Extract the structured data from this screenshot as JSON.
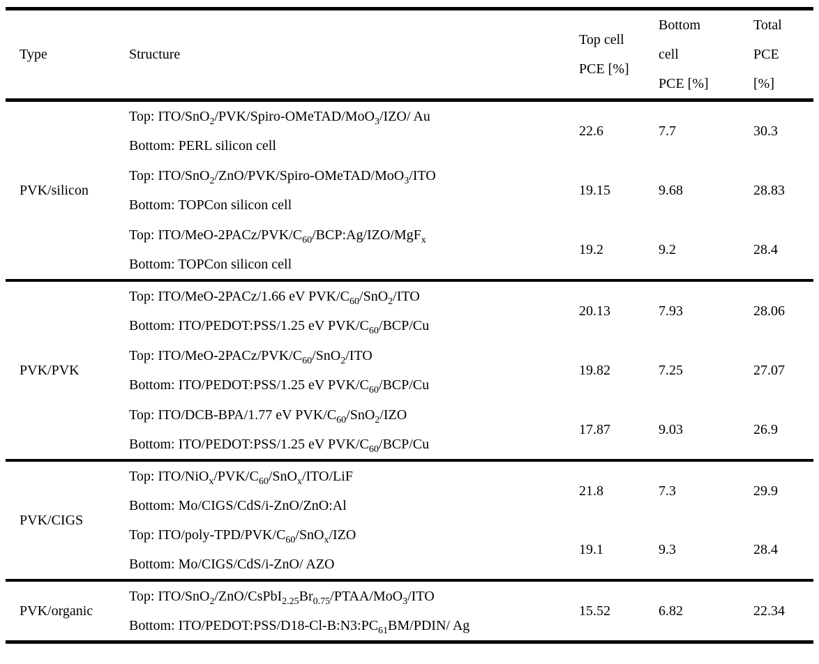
{
  "colors": {
    "text": "#000000",
    "background": "#ffffff",
    "rule": "#000000"
  },
  "table": {
    "headers": {
      "type": "Type",
      "structure": "Structure",
      "top_cell_lines": [
        "Top cell",
        "PCE [%]"
      ],
      "bottom_cell_lines": [
        "Bottom",
        "cell",
        "PCE [%]"
      ],
      "total_lines": [
        "Total",
        "PCE",
        "[%]"
      ]
    },
    "groups": [
      {
        "type": "PVK/silicon",
        "rows": [
          {
            "top": "Top: ITO/SnO~2~/PVK/Spiro-OMeTAD/MoO~3~/IZO/ Au",
            "bottom": "Bottom: PERL silicon cell",
            "top_pce": "22.6",
            "bottom_pce": "7.7",
            "total_pce": "30.3"
          },
          {
            "top": "Top: ITO/SnO~2~/ZnO/PVK/Spiro-OMeTAD/MoO~3~/ITO",
            "bottom": "Bottom: TOPCon silicon cell",
            "top_pce": "19.15",
            "bottom_pce": "9.68",
            "total_pce": "28.83"
          },
          {
            "top": "Top: ITO/MeO-2PACz/PVK/C~60~/BCP:Ag/IZO/MgF~x~",
            "bottom": "Bottom: TOPCon silicon cell",
            "top_pce": "19.2",
            "bottom_pce": "9.2",
            "total_pce": "28.4"
          }
        ]
      },
      {
        "type": "PVK/PVK",
        "rows": [
          {
            "top": "Top: ITO/MeO-2PACz/1.66 eV PVK/C~60~/SnO~2~/ITO",
            "bottom": "Bottom: ITO/PEDOT:PSS/1.25 eV PVK/C~60~/BCP/Cu",
            "top_pce": "20.13",
            "bottom_pce": "7.93",
            "total_pce": "28.06"
          },
          {
            "top": "Top: ITO/MeO-2PACz/PVK/C~60~/SnO~2~/ITO",
            "bottom": "Bottom: ITO/PEDOT:PSS/1.25 eV PVK/C~60~/BCP/Cu",
            "top_pce": "19.82",
            "bottom_pce": "7.25",
            "total_pce": "27.07"
          },
          {
            "top": "Top: ITO/DCB-BPA/1.77 eV PVK/C~60~/SnO~2~/IZO",
            "bottom": "Bottom: ITO/PEDOT:PSS/1.25 eV PVK/C~60~/BCP/Cu",
            "top_pce": "17.87",
            "bottom_pce": "9.03",
            "total_pce": "26.9"
          }
        ]
      },
      {
        "type": "PVK/CIGS",
        "rows": [
          {
            "top": "Top: ITO/NiO~x~/PVK/C~60~/SnO~x~/ITO/LiF",
            "bottom": "Bottom: Mo/CIGS/CdS/i-ZnO/ZnO:Al",
            "top_pce": "21.8",
            "bottom_pce": "7.3",
            "total_pce": "29.9"
          },
          {
            "top": "Top: ITO/poly-TPD/PVK/C~60~/SnO~x~/IZO",
            "bottom": "Bottom: Mo/CIGS/CdS/i-ZnO/ AZO",
            "top_pce": "19.1",
            "bottom_pce": "9.3",
            "total_pce": "28.4"
          }
        ]
      },
      {
        "type": "PVK/organic",
        "rows": [
          {
            "top": "Top: ITO/SnO~2~/ZnO/CsPbI~2.25~Br~0.75~/PTAA/MoO~3~/ITO",
            "bottom": "Bottom: ITO/PEDOT:PSS/D18-Cl-B:N3:PC~61~BM/PDIN/ Ag",
            "top_pce": "15.52",
            "bottom_pce": "6.82",
            "total_pce": "22.34"
          }
        ]
      }
    ]
  }
}
